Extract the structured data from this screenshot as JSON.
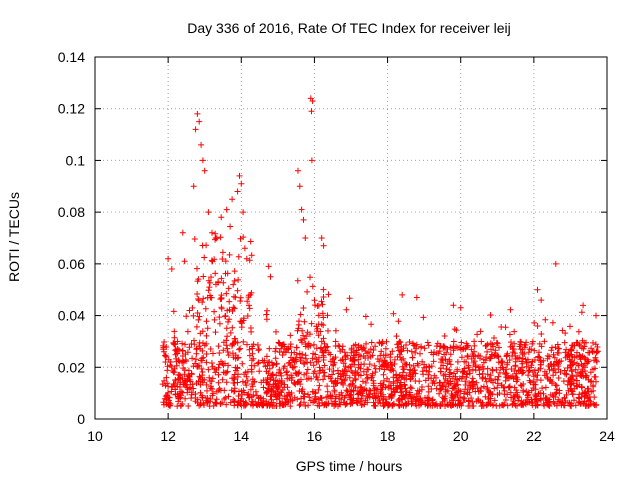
{
  "chart_data": {
    "type": "scatter",
    "title": "Day 336 of 2016, Rate Of TEC Index for receiver leij",
    "xlabel": "GPS time / hours",
    "ylabel": "ROTI / TECUs",
    "xlim": [
      10,
      24
    ],
    "ylim": [
      0,
      0.14
    ],
    "x_ticks": [
      "10",
      "12",
      "14",
      "16",
      "18",
      "20",
      "22",
      "24"
    ],
    "y_ticks": [
      "0",
      "0.02",
      "0.04",
      "0.06",
      "0.08",
      "0.1",
      "0.12",
      "0.14"
    ],
    "grid": true,
    "marker": "plus",
    "color": "#ff0000",
    "series": [
      {
        "name": "ROTI",
        "x_range": [
          11.85,
          23.75
        ],
        "baseline_band": [
          0.005,
          0.03
        ],
        "notable_points": [
          {
            "x": 12.0,
            "y": 0.062
          },
          {
            "x": 12.1,
            "y": 0.058
          },
          {
            "x": 12.4,
            "y": 0.072
          },
          {
            "x": 12.45,
            "y": 0.061
          },
          {
            "x": 12.75,
            "y": 0.112
          },
          {
            "x": 12.8,
            "y": 0.118
          },
          {
            "x": 12.85,
            "y": 0.115
          },
          {
            "x": 12.9,
            "y": 0.106
          },
          {
            "x": 12.95,
            "y": 0.1
          },
          {
            "x": 13.0,
            "y": 0.096
          },
          {
            "x": 12.7,
            "y": 0.09
          },
          {
            "x": 13.1,
            "y": 0.08
          },
          {
            "x": 13.2,
            "y": 0.072
          },
          {
            "x": 13.3,
            "y": 0.07
          },
          {
            "x": 13.45,
            "y": 0.078
          },
          {
            "x": 13.6,
            "y": 0.081
          },
          {
            "x": 13.75,
            "y": 0.085
          },
          {
            "x": 13.9,
            "y": 0.088
          },
          {
            "x": 13.95,
            "y": 0.094
          },
          {
            "x": 14.0,
            "y": 0.091
          },
          {
            "x": 14.05,
            "y": 0.08
          },
          {
            "x": 14.1,
            "y": 0.066
          },
          {
            "x": 14.15,
            "y": 0.062
          },
          {
            "x": 14.75,
            "y": 0.059
          },
          {
            "x": 14.8,
            "y": 0.055
          },
          {
            "x": 15.55,
            "y": 0.096
          },
          {
            "x": 15.6,
            "y": 0.09
          },
          {
            "x": 15.65,
            "y": 0.081
          },
          {
            "x": 15.7,
            "y": 0.077
          },
          {
            "x": 15.75,
            "y": 0.07
          },
          {
            "x": 15.9,
            "y": 0.124
          },
          {
            "x": 15.95,
            "y": 0.123
          },
          {
            "x": 15.92,
            "y": 0.119
          },
          {
            "x": 15.93,
            "y": 0.1
          },
          {
            "x": 16.2,
            "y": 0.07
          },
          {
            "x": 16.25,
            "y": 0.067
          },
          {
            "x": 18.4,
            "y": 0.048
          },
          {
            "x": 18.8,
            "y": 0.047
          },
          {
            "x": 19.8,
            "y": 0.044
          },
          {
            "x": 20.0,
            "y": 0.043
          },
          {
            "x": 22.1,
            "y": 0.05
          },
          {
            "x": 22.2,
            "y": 0.046
          },
          {
            "x": 22.6,
            "y": 0.06
          },
          {
            "x": 23.7,
            "y": 0.04
          }
        ]
      }
    ]
  }
}
